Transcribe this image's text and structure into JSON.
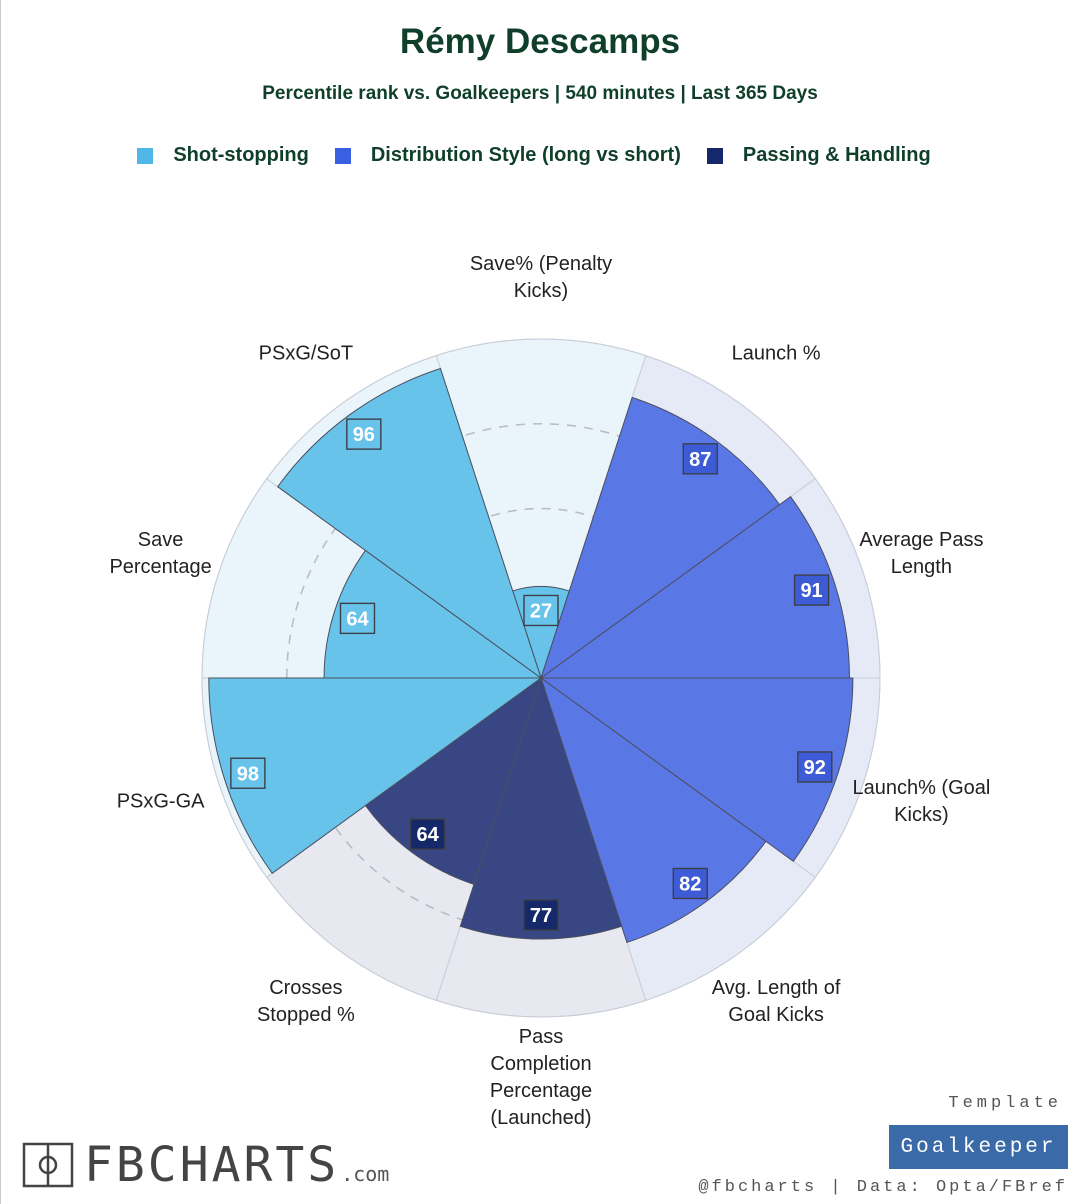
{
  "title": "Rémy Descamps",
  "subtitle": "Percentile rank vs. Goalkeepers | 540 minutes | Last 365 Days",
  "legend": [
    {
      "label": "Shot-stopping",
      "color": "#50b8e6"
    },
    {
      "label": "Distribution Style (long vs short)",
      "color": "#3a5fe0"
    },
    {
      "label": "Passing & Handling",
      "color": "#14286a"
    }
  ],
  "chart_data": {
    "type": "polar-bar",
    "range": [
      0,
      100
    ],
    "gridlines": [
      25,
      50,
      75
    ],
    "categories": [
      {
        "label": "Save% (Penalty Kicks)",
        "label_lines": [
          "Save% (Penalty",
          "Kicks)"
        ],
        "value": 27,
        "group": 0
      },
      {
        "label": "Launch %",
        "label_lines": [
          "Launch %"
        ],
        "value": 87,
        "group": 1
      },
      {
        "label": "Average Pass Length",
        "label_lines": [
          "Average Pass",
          "Length"
        ],
        "value": 91,
        "group": 1
      },
      {
        "label": "Launch% (Goal Kicks)",
        "label_lines": [
          "Launch% (Goal",
          "Kicks)"
        ],
        "value": 92,
        "group": 1
      },
      {
        "label": "Avg. Length of Goal Kicks",
        "label_lines": [
          "Avg. Length of",
          "Goal Kicks"
        ],
        "value": 82,
        "group": 1
      },
      {
        "label": "Pass Completion Percentage (Launched)",
        "label_lines": [
          "Pass",
          "Completion",
          "Percentage",
          "(Launched)"
        ],
        "value": 77,
        "group": 2
      },
      {
        "label": "Crosses Stopped %",
        "label_lines": [
          "Crosses",
          "Stopped %"
        ],
        "value": 64,
        "group": 2
      },
      {
        "label": "PSxG-GA",
        "label_lines": [
          "PSxG-GA"
        ],
        "value": 98,
        "group": 0
      },
      {
        "label": "Save Percentage",
        "label_lines": [
          "Save",
          "Percentage"
        ],
        "value": 64,
        "group": 0
      },
      {
        "label": "PSxG/SoT",
        "label_lines": [
          "PSxG/SoT"
        ],
        "value": 96,
        "group": 0
      }
    ],
    "group_colors": {
      "bar": [
        "#68c3ea",
        "#5a77e6",
        "#384684"
      ],
      "background": [
        "#eaf5fb",
        "#e6eaf7",
        "#e7e8f0"
      ],
      "badge": [
        "#68c3ea",
        "#3e5bd6",
        "#14286a"
      ]
    }
  },
  "footer": {
    "logo_text": "FBCHARTS",
    "logo_suffix": ".com",
    "template_label": "Template",
    "template_name": "Goalkeeper",
    "credit": "@fbcharts | Data: Opta/FBref"
  }
}
